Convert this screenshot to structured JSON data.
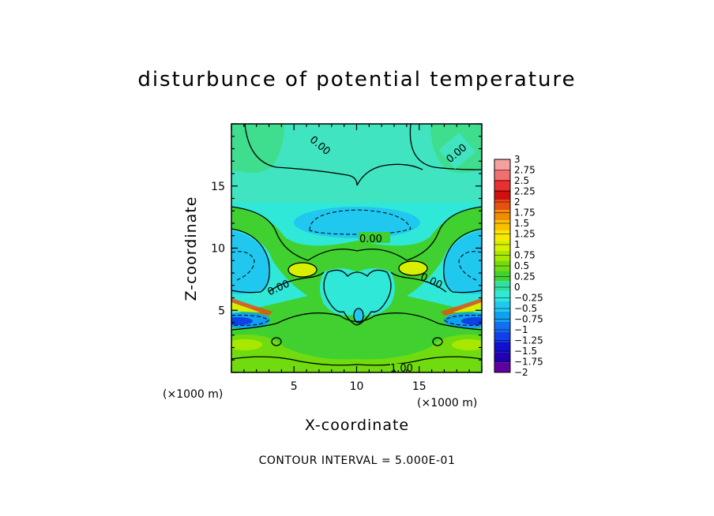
{
  "chart_data": {
    "type": "heatmap",
    "title": "disturbunce of potential temperature",
    "xlabel": "X-coordinate",
    "ylabel": "Z-coordinate",
    "x_unit": "(×1000 m)",
    "z_unit": "(×1000 m)",
    "xlim": [
      0,
      20
    ],
    "ylim": [
      0,
      20
    ],
    "x_ticks": [
      5,
      10,
      15
    ],
    "y_ticks": [
      5,
      10,
      15
    ],
    "colorbar_levels": [
      "3",
      "2.75",
      "2.5",
      "2.25",
      "2",
      "1.75",
      "1.5",
      "1.25",
      "1",
      "0.75",
      "0.5",
      "0.25",
      "0",
      "−0.25",
      "−0.5",
      "−0.75",
      "−1",
      "−1.25",
      "−1.5",
      "−1.75",
      "−2"
    ],
    "colorbar_colors": [
      "#f5a0a0",
      "#f07070",
      "#e83030",
      "#d01010",
      "#e85010",
      "#f08c00",
      "#f8c000",
      "#f8e800",
      "#d8f000",
      "#a8e800",
      "#70dc10",
      "#40d030",
      "#30e0a0",
      "#30e8d8",
      "#20c8f0",
      "#10a0f0",
      "#1070f0",
      "#1040e8",
      "#1010d0",
      "#2000b0",
      "#6000a0"
    ],
    "contour_labels": [
      "0.00",
      "0.00",
      "0.00",
      "0.00",
      "0.00",
      "1.00"
    ],
    "contour_interval_text": "CONTOUR INTERVAL = 5.000E-01"
  }
}
